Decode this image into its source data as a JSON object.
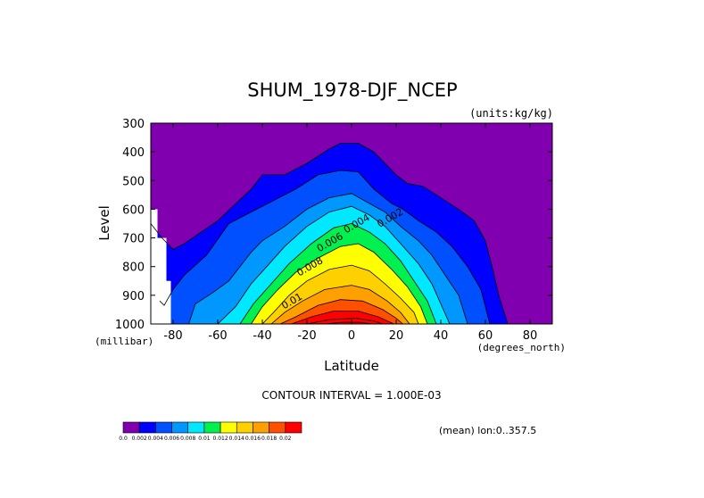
{
  "chart_data": {
    "type": "contour",
    "title": "SHUM_1978-DJF_NCEP",
    "units_label": "(units:kg/kg)",
    "xlabel": "Latitude",
    "ylabel": "Level",
    "x_unit_label": "(degrees_north)",
    "y_unit_label": "(millibar)",
    "xlim": [
      -90,
      90
    ],
    "ylim": [
      1000,
      300
    ],
    "x_ticks": [
      "-80",
      "-60",
      "-40",
      "-20",
      "0",
      "20",
      "40",
      "60",
      "80"
    ],
    "x_tick_values": [
      -80,
      -60,
      -40,
      -20,
      0,
      20,
      40,
      60,
      80
    ],
    "y_ticks": [
      "300",
      "400",
      "500",
      "600",
      "700",
      "800",
      "900",
      "1000"
    ],
    "y_tick_values": [
      300,
      400,
      500,
      600,
      700,
      800,
      900,
      1000
    ],
    "levels": [
      0,
      0.002,
      0.004,
      0.006,
      0.008,
      0.01,
      0.012,
      0.014,
      0.016,
      0.018,
      0.02
    ],
    "fill_colors": [
      "#8000b0",
      "#0000ff",
      "#0050ff",
      "#0098ff",
      "#00e8ff",
      "#00f050",
      "#ffff00",
      "#ffd000",
      "#ffa000",
      "#ff5000",
      "#ff0000"
    ],
    "contour_labels": [
      {
        "text": "0.002",
        "x": 18,
        "y": 640
      },
      {
        "text": "0.004",
        "x": 3,
        "y": 660
      },
      {
        "text": "0.006",
        "x": -9,
        "y": 725
      },
      {
        "text": "0.008",
        "x": -18,
        "y": 810
      },
      {
        "text": "0.01",
        "x": -26,
        "y": 930
      }
    ],
    "contour_interval_text": "CONTOUR INTERVAL = 1.000E-03",
    "mean_text": "(mean) lon:0..357.5",
    "colorbar_labels": [
      "0.0",
      "0.002",
      "0.004",
      "0.006",
      "0.008",
      "0.01",
      "0.012",
      "0.014",
      "0.016",
      "0.018",
      "0.02"
    ],
    "missing_region": [
      [
        -90,
        600
      ],
      [
        -87,
        600
      ],
      [
        -87,
        700
      ],
      [
        -83,
        700
      ],
      [
        -83,
        850
      ],
      [
        -81,
        850
      ],
      [
        -81,
        1000
      ],
      [
        -90,
        1000
      ]
    ],
    "contours": [
      [
        [
          -90,
          650
        ],
        [
          -85,
          700
        ],
        [
          -80,
          740
        ],
        [
          -75,
          720
        ],
        [
          -60,
          640
        ],
        [
          -45,
          530
        ],
        [
          -40,
          480
        ],
        [
          -30,
          480
        ],
        [
          -20,
          440
        ],
        [
          -10,
          390
        ],
        [
          -5,
          370
        ],
        [
          3,
          370
        ],
        [
          10,
          400
        ],
        [
          20,
          480
        ],
        [
          25,
          510
        ],
        [
          32,
          520
        ],
        [
          40,
          560
        ],
        [
          48,
          600
        ],
        [
          55,
          640
        ],
        [
          60,
          710
        ],
        [
          63,
          800
        ],
        [
          66,
          900
        ],
        [
          70,
          1000
        ]
      ],
      [
        [
          -86,
          920
        ],
        [
          -84,
          935
        ],
        [
          -80,
          880
        ],
        [
          -75,
          830
        ],
        [
          -65,
          760
        ],
        [
          -55,
          650
        ],
        [
          -45,
          610
        ],
        [
          -35,
          570
        ],
        [
          -25,
          530
        ],
        [
          -15,
          480
        ],
        [
          -5,
          465
        ],
        [
          3,
          470
        ],
        [
          10,
          530
        ],
        [
          18,
          580
        ],
        [
          23,
          600
        ],
        [
          30,
          640
        ],
        [
          38,
          680
        ],
        [
          45,
          730
        ],
        [
          52,
          800
        ],
        [
          58,
          880
        ],
        [
          62,
          1000
        ]
      ],
      [
        [
          -73,
          1000
        ],
        [
          -70,
          930
        ],
        [
          -62,
          890
        ],
        [
          -55,
          850
        ],
        [
          -45,
          750
        ],
        [
          -40,
          710
        ],
        [
          -30,
          660
        ],
        [
          -20,
          600
        ],
        [
          -10,
          560
        ],
        [
          0,
          545
        ],
        [
          8,
          580
        ],
        [
          15,
          610
        ],
        [
          22,
          660
        ],
        [
          30,
          710
        ],
        [
          36,
          760
        ],
        [
          42,
          830
        ],
        [
          48,
          900
        ],
        [
          52,
          1000
        ]
      ],
      [
        [
          -60,
          1000
        ],
        [
          -52,
          940
        ],
        [
          -45,
          860
        ],
        [
          -38,
          800
        ],
        [
          -30,
          730
        ],
        [
          -20,
          660
        ],
        [
          -10,
          610
        ],
        [
          0,
          590
        ],
        [
          8,
          620
        ],
        [
          15,
          660
        ],
        [
          22,
          720
        ],
        [
          30,
          790
        ],
        [
          36,
          860
        ],
        [
          40,
          930
        ],
        [
          44,
          1000
        ]
      ],
      [
        [
          -50,
          1000
        ],
        [
          -44,
          930
        ],
        [
          -36,
          860
        ],
        [
          -28,
          790
        ],
        [
          -18,
          720
        ],
        [
          -8,
          665
        ],
        [
          0,
          650
        ],
        [
          8,
          680
        ],
        [
          15,
          720
        ],
        [
          22,
          780
        ],
        [
          28,
          850
        ],
        [
          34,
          920
        ],
        [
          38,
          1000
        ]
      ],
      [
        [
          -45,
          1000
        ],
        [
          -40,
          940
        ],
        [
          -33,
          880
        ],
        [
          -25,
          820
        ],
        [
          -15,
          770
        ],
        [
          -5,
          730
        ],
        [
          3,
          720
        ],
        [
          10,
          750
        ],
        [
          18,
          810
        ],
        [
          25,
          870
        ],
        [
          31,
          940
        ],
        [
          34,
          1000
        ]
      ],
      [
        [
          -40,
          1000
        ],
        [
          -35,
          960
        ],
        [
          -28,
          900
        ],
        [
          -20,
          850
        ],
        [
          -10,
          810
        ],
        [
          0,
          795
        ],
        [
          8,
          815
        ],
        [
          15,
          860
        ],
        [
          22,
          910
        ],
        [
          28,
          960
        ],
        [
          30,
          1000
        ]
      ],
      [
        [
          -36,
          1000
        ],
        [
          -30,
          960
        ],
        [
          -22,
          920
        ],
        [
          -12,
          880
        ],
        [
          0,
          865
        ],
        [
          8,
          880
        ],
        [
          16,
          920
        ],
        [
          22,
          960
        ],
        [
          26,
          1000
        ]
      ],
      [
        [
          -32,
          1000
        ],
        [
          -25,
          975
        ],
        [
          -15,
          935
        ],
        [
          -5,
          915
        ],
        [
          5,
          920
        ],
        [
          14,
          950
        ],
        [
          20,
          980
        ],
        [
          23,
          1000
        ]
      ],
      [
        [
          -27,
          1000
        ],
        [
          -18,
          975
        ],
        [
          -8,
          955
        ],
        [
          3,
          955
        ],
        [
          12,
          975
        ],
        [
          19,
          1000
        ]
      ],
      [
        [
          -20,
          1000
        ],
        [
          -10,
          985
        ],
        [
          2,
          980
        ],
        [
          10,
          990
        ],
        [
          14,
          1000
        ]
      ],
      [
        [
          -12,
          1000
        ],
        [
          -4,
          994
        ],
        [
          4,
          994
        ],
        [
          9,
          1000
        ]
      ]
    ]
  }
}
